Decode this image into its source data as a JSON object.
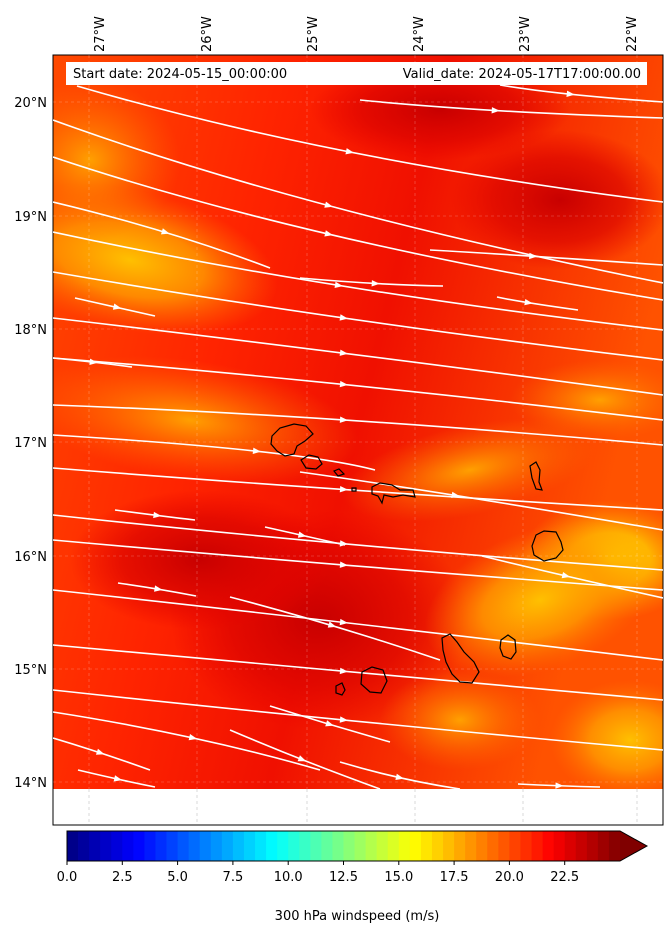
{
  "info_box": {
    "start_date": "Start date: 2024-05-15_00:00:00",
    "valid_date": "Valid_date: 2024-05-17T17:00:00.00"
  },
  "map": {
    "longitude_ticks": [
      "27°W",
      "26°W",
      "25°W",
      "24°W",
      "23°W",
      "22°W"
    ],
    "latitude_ticks": [
      "20°N",
      "19°N",
      "18°N",
      "17°N",
      "16°N",
      "15°N",
      "14°N"
    ],
    "field": "300 hPa windspeed",
    "streamline_color": "#ffffff",
    "coastline_color": "#000000",
    "gridlines": true
  },
  "colorbar": {
    "label": "300 hPa windspeed (m/s)",
    "tick_labels": [
      "0.0",
      "2.5",
      "5.0",
      "7.5",
      "10.0",
      "12.5",
      "15.0",
      "17.5",
      "20.0",
      "22.5"
    ],
    "min": 0,
    "max": 25,
    "step": 0.5,
    "colormap": "jet",
    "extend": "max"
  }
}
